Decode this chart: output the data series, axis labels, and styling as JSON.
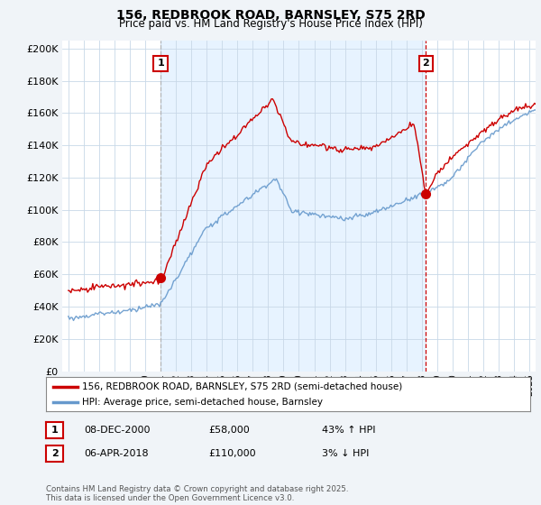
{
  "title": "156, REDBROOK ROAD, BARNSLEY, S75 2RD",
  "subtitle": "Price paid vs. HM Land Registry's House Price Index (HPI)",
  "ylim": [
    0,
    205000
  ],
  "yticks": [
    0,
    20000,
    40000,
    60000,
    80000,
    100000,
    120000,
    140000,
    160000,
    180000,
    200000
  ],
  "xlim_start": 1994.6,
  "xlim_end": 2025.4,
  "line1_color": "#cc0000",
  "line2_color": "#6699cc",
  "shade_color": "#ddeeff",
  "line1_label": "156, REDBROOK ROAD, BARNSLEY, S75 2RD (semi-detached house)",
  "line2_label": "HPI: Average price, semi-detached house, Barnsley",
  "purchase1_date": 2001.0,
  "purchase1_price": 58000,
  "purchase1_label": "1",
  "purchase2_date": 2018.27,
  "purchase2_price": 110000,
  "purchase2_label": "2",
  "annotation1_date": "08-DEC-2000",
  "annotation1_price": "£58,000",
  "annotation1_hpi": "43% ↑ HPI",
  "annotation2_date": "06-APR-2018",
  "annotation2_price": "£110,000",
  "annotation2_hpi": "3% ↓ HPI",
  "footer": "Contains HM Land Registry data © Crown copyright and database right 2025.\nThis data is licensed under the Open Government Licence v3.0.",
  "background_color": "#f0f4f8",
  "plot_bg_color": "#ffffff",
  "grid_color": "#c8d8e8",
  "vline1_color": "#aaaaaa",
  "vline2_color": "#cc0000"
}
